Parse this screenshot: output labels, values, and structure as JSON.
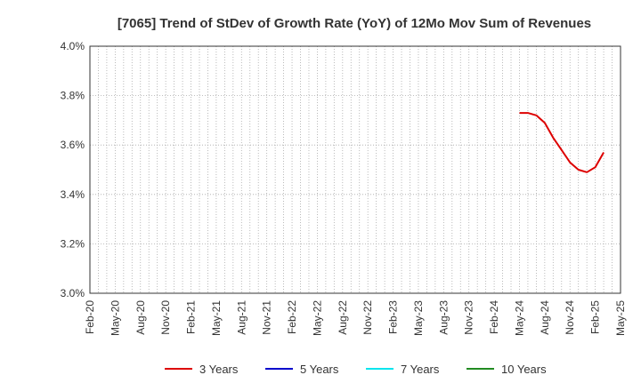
{
  "chart_data": {
    "type": "line",
    "title": "[7065]  Trend of StDev of Growth Rate (YoY) of 12Mo Mov Sum of Revenues",
    "xlabel": "",
    "ylabel": "",
    "x_ticks": [
      "Feb-20",
      "May-20",
      "Aug-20",
      "Nov-20",
      "Feb-21",
      "May-21",
      "Aug-21",
      "Nov-21",
      "Feb-22",
      "May-22",
      "Aug-22",
      "Nov-22",
      "Feb-23",
      "May-23",
      "Aug-23",
      "Nov-23",
      "Feb-24",
      "May-24",
      "Aug-24",
      "Nov-24",
      "Feb-25",
      "May-25"
    ],
    "y_ticks": [
      "3.0%",
      "3.2%",
      "3.4%",
      "3.6%",
      "3.8%",
      "4.0%"
    ],
    "ylim": [
      3.0,
      4.0
    ],
    "y_unit": "%",
    "grid": true,
    "legend_position": "bottom",
    "series": [
      {
        "name": "3 Years",
        "color": "#dd0000",
        "points": [
          [
            "May-24",
            3.73
          ],
          [
            "Jun-24",
            3.73
          ],
          [
            "Jul-24",
            3.72
          ],
          [
            "Aug-24",
            3.69
          ],
          [
            "Sep-24",
            3.63
          ],
          [
            "Oct-24",
            3.58
          ],
          [
            "Nov-24",
            3.53
          ],
          [
            "Dec-24",
            3.5
          ],
          [
            "Jan-25",
            3.49
          ],
          [
            "Feb-25",
            3.51
          ],
          [
            "Mar-25",
            3.57
          ]
        ]
      },
      {
        "name": "5 Years",
        "color": "#0000cc",
        "points": []
      },
      {
        "name": "7 Years",
        "color": "#00e5ee",
        "points": []
      },
      {
        "name": "10 Years",
        "color": "#228b22",
        "points": []
      }
    ]
  }
}
